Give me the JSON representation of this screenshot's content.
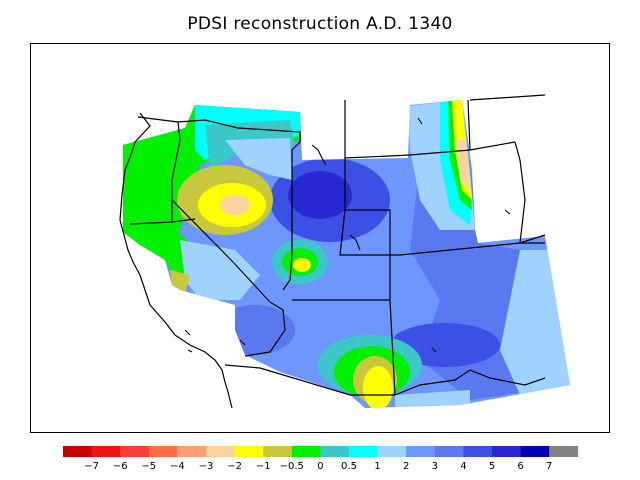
{
  "title": "PDSI reconstruction A.D. 1340",
  "colorbar": {
    "colors": [
      "#c80000",
      "#f01414",
      "#ff3c3c",
      "#ff6e46",
      "#ffa078",
      "#ffd2a0",
      "#ffff00",
      "#c8c83c",
      "#00f000",
      "#3cc8c8",
      "#00ffff",
      "#a0d2ff",
      "#6e96ff",
      "#5a78f0",
      "#3c50e6",
      "#2828d2",
      "#0000b4",
      "#828282"
    ],
    "labels": [
      "−7",
      "−6",
      "−5",
      "−4",
      "−3",
      "−2",
      "−1",
      "−0.5",
      "0",
      "0.5",
      "1",
      "2",
      "3",
      "4",
      "5",
      "6",
      "7"
    ]
  }
}
